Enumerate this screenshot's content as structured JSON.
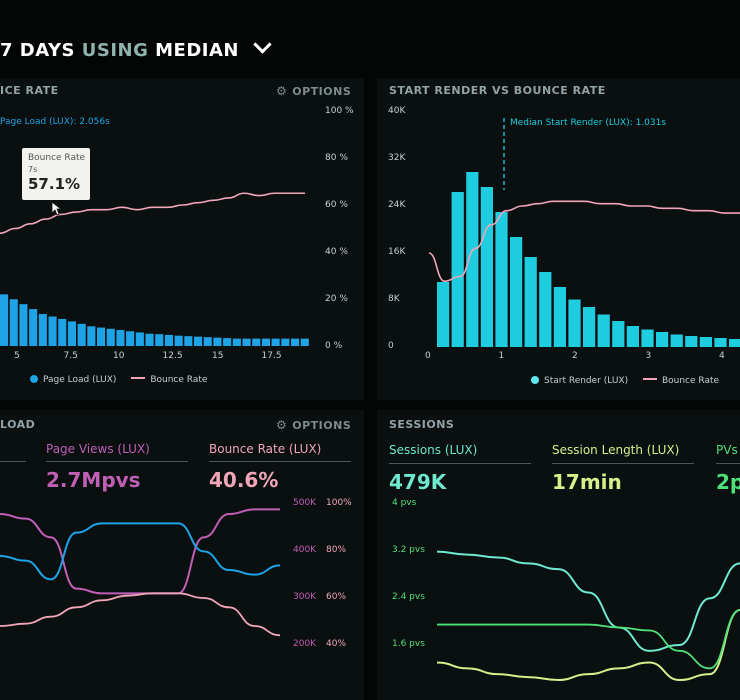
{
  "header": {
    "days": "7 DAYS",
    "using": "USING",
    "median": "MEDIAN"
  },
  "colors": {
    "blue": "#1ea3e6",
    "cyan": "#1ecde0",
    "pink": "#f0a6b8",
    "purple": "#c05fb6",
    "teal": "#6ee8cf",
    "lime": "#d6ef8a",
    "green": "#4fe07a"
  },
  "panel_bounce": {
    "title": "ICE RATE",
    "options": "OPTIONS",
    "subtitle": "Page Load (LUX): 2.056s",
    "tooltip": {
      "label": "Bounce Rate",
      "sub": "7s",
      "value": "57.1%"
    },
    "legend": [
      "Page Load (LUX)",
      "Bounce Rate"
    ]
  },
  "panel_render": {
    "title": "START RENDER VS BOUNCE RATE",
    "median_label": "Median Start Render (LUX): 1.031s",
    "legend": [
      "Start Render (LUX)",
      "Bounce Rate"
    ]
  },
  "panel_load": {
    "title": "LOAD",
    "options": "OPTIONS",
    "kpis": [
      {
        "label": "Page Views (LUX)",
        "value": "2.7Mpvs"
      },
      {
        "label": "Bounce Rate (LUX)",
        "value": "40.6%"
      }
    ]
  },
  "panel_sessions": {
    "title": "SESSIONS",
    "kpis": [
      {
        "label": "Sessions (LUX)",
        "value": "479K"
      },
      {
        "label": "Session Length (LUX)",
        "value": "17min"
      },
      {
        "label": "PVs",
        "value": "2p"
      }
    ]
  },
  "chart_data": [
    {
      "type": "bar",
      "title": "BOUNCE RATE",
      "x_ticks": [
        "5",
        "7.5",
        "10",
        "12.5",
        "15",
        "17.5"
      ],
      "y_right_ticks": [
        "100 %",
        "80 %",
        "60 %",
        "40 %",
        "20 %",
        "0 %"
      ],
      "series": [
        {
          "name": "Page Load (LUX)",
          "values": [
            21,
            19,
            17,
            15,
            13,
            12,
            11,
            10,
            9,
            8,
            7.5,
            7,
            6.5,
            6,
            5.5,
            5,
            4.8,
            4.5,
            4.2,
            4,
            3.8,
            3.6,
            3.4,
            3.2,
            3,
            3,
            3,
            3,
            3,
            3,
            3,
            3
          ]
        },
        {
          "name": "Bounce Rate",
          "values": [
            48,
            50,
            52,
            54,
            56,
            57,
            58,
            58,
            59,
            58,
            59,
            59,
            60,
            61,
            62,
            63,
            65,
            64,
            65,
            65,
            65
          ]
        }
      ]
    },
    {
      "type": "bar",
      "title": "START RENDER VS BOUNCE RATE",
      "x_ticks": [
        "0",
        "1",
        "2",
        "3",
        "4"
      ],
      "y_left_ticks": [
        "40K",
        "32K",
        "24K",
        "16K",
        "8K",
        "0"
      ],
      "median": 1.031,
      "series": [
        {
          "name": "Start Render (LUX)",
          "values": [
            13000,
            31000,
            35000,
            32000,
            27000,
            22000,
            18000,
            15000,
            12000,
            9500,
            8000,
            6500,
            5200,
            4200,
            3500,
            3000,
            2500,
            2200,
            2000,
            1800,
            1600,
            1500,
            1400,
            1300,
            1200,
            1100,
            1000,
            900
          ]
        },
        {
          "name": "Bounce Rate",
          "values": [
            40,
            28,
            30,
            42,
            52,
            58,
            60,
            61,
            62,
            62,
            62,
            61,
            61,
            60,
            60,
            59,
            59,
            58,
            58,
            57,
            57
          ]
        }
      ]
    },
    {
      "type": "line",
      "title": "LOAD",
      "y_left_ticks": [
        "500K",
        "400K",
        "300K",
        "200K"
      ],
      "y_right_ticks": [
        "100%",
        "80%",
        "60%",
        "40%"
      ],
      "series": [
        {
          "name": "Page Views (LUX)",
          "values": [
            470,
            460,
            420,
            310,
            300,
            300,
            300,
            300,
            420,
            470,
            480,
            480
          ]
        },
        {
          "name": "Bounce Rate (LUX)",
          "values": [
            380,
            370,
            330,
            430,
            450,
            450,
            450,
            450,
            390,
            350,
            340,
            360
          ]
        },
        {
          "name": "Bounce",
          "values": [
            230,
            235,
            250,
            270,
            285,
            295,
            300,
            300,
            290,
            270,
            230,
            210
          ]
        }
      ]
    },
    {
      "type": "line",
      "title": "SESSIONS",
      "y_left_ticks": [
        "4 pvs",
        "3.2 pvs",
        "2.4 pvs",
        "1.6 pvs"
      ],
      "series": [
        {
          "name": "Sessions (LUX)",
          "values": [
            3.2,
            3.15,
            3.1,
            3.0,
            2.9,
            2.5,
            1.9,
            1.5,
            1.6,
            2.4,
            3.0
          ]
        },
        {
          "name": "Session Length (LUX)",
          "values": [
            1.3,
            1.2,
            1.1,
            1.05,
            1.0,
            1.1,
            1.2,
            1.3,
            1.0,
            1.1,
            2.2
          ]
        },
        {
          "name": "PVs",
          "values": [
            1.95,
            1.95,
            1.95,
            1.95,
            1.95,
            1.95,
            1.9,
            1.85,
            1.5,
            1.2,
            2.2
          ]
        }
      ]
    }
  ]
}
